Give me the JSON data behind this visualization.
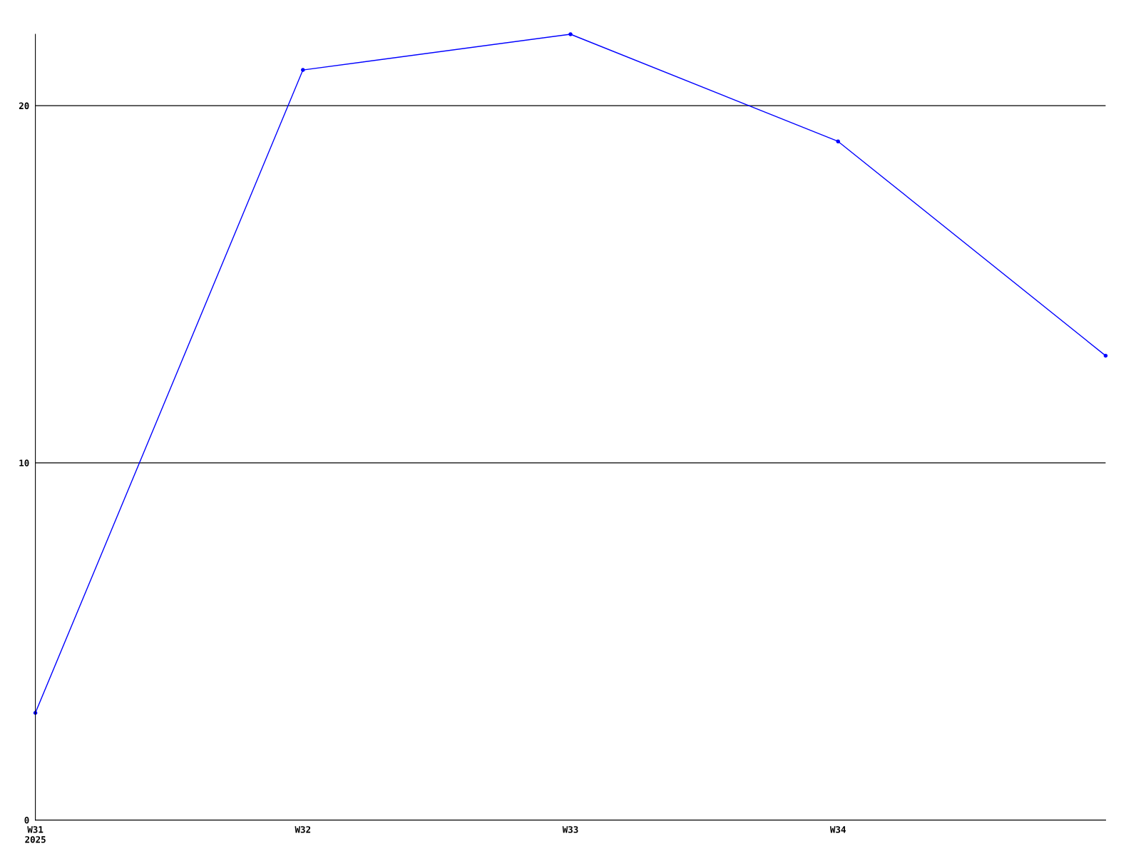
{
  "chart_data": {
    "type": "line",
    "categories": [
      "W31\n2025",
      "W32",
      "W33",
      "W34",
      null
    ],
    "series": [
      {
        "color": "#0000ff",
        "values": [
          3,
          21,
          22,
          19,
          13
        ]
      }
    ],
    "ylim": [
      0,
      22
    ],
    "yticks": [
      0,
      10,
      20
    ],
    "grid": "y",
    "marker": "circle",
    "line_style": "solid"
  }
}
